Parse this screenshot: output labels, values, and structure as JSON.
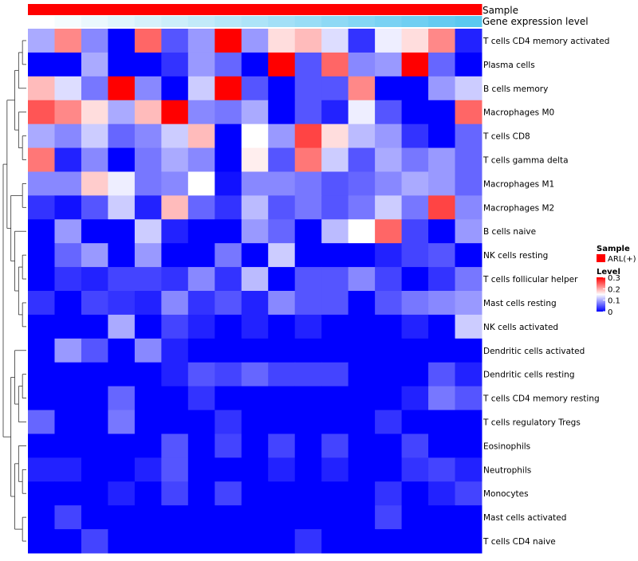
{
  "chart_data": {
    "type": "heatmap",
    "title": "",
    "annotation_tracks": [
      {
        "name": "Sample",
        "color_start": "#ff0000",
        "color_end": "#ff0000"
      },
      {
        "name": "Gene expression level",
        "color_start": "#ffffff",
        "color_end": "#5bc8f0"
      }
    ],
    "rows": [
      "T cells CD4 memory activated",
      "Plasma cells",
      "B cells memory",
      "Macrophages M0",
      "T cells CD8",
      "T cells gamma delta",
      "Macrophages M1",
      "Macrophages M2",
      "B cells naive",
      "NK cells resting",
      "T cells follicular helper",
      "Mast cells resting",
      "NK cells activated",
      "Dendritic cells activated",
      "Dendritic cells resting",
      "T cells CD4 memory resting",
      "T cells regulatory  Tregs",
      "Eosinophils",
      "Neutrophils",
      "Monocytes",
      "Mast cells activated",
      "T cells CD4 naive"
    ],
    "n_columns": 17,
    "values": [
      [
        0.1,
        0.22,
        0.08,
        0.0,
        0.24,
        0.05,
        0.09,
        0.3,
        0.09,
        0.17,
        0.19,
        0.13,
        0.03,
        0.14,
        0.17,
        0.22,
        0.02
      ],
      [
        0.0,
        0.0,
        0.1,
        0.0,
        0.0,
        0.03,
        0.09,
        0.06,
        0.0,
        0.3,
        0.05,
        0.24,
        0.08,
        0.09,
        0.3,
        0.06,
        0.0
      ],
      [
        0.19,
        0.13,
        0.07,
        0.3,
        0.08,
        0.0,
        0.12,
        0.3,
        0.05,
        0.0,
        0.05,
        0.05,
        0.22,
        0.0,
        0.0,
        0.09,
        0.12
      ],
      [
        0.25,
        0.22,
        0.17,
        0.1,
        0.19,
        0.3,
        0.08,
        0.07,
        0.1,
        0.0,
        0.05,
        0.02,
        0.14,
        0.05,
        0.0,
        0.0,
        0.24
      ],
      [
        0.1,
        0.08,
        0.12,
        0.06,
        0.08,
        0.12,
        0.19,
        0.0,
        0.15,
        0.09,
        0.26,
        0.17,
        0.11,
        0.09,
        0.03,
        0.0,
        0.06
      ],
      [
        0.23,
        0.02,
        0.08,
        0.0,
        0.07,
        0.1,
        0.08,
        0.0,
        0.16,
        0.05,
        0.23,
        0.12,
        0.05,
        0.1,
        0.07,
        0.09,
        0.06
      ],
      [
        0.08,
        0.08,
        0.18,
        0.14,
        0.07,
        0.08,
        0.15,
        0.01,
        0.08,
        0.08,
        0.07,
        0.05,
        0.06,
        0.08,
        0.1,
        0.09,
        0.06
      ],
      [
        0.03,
        0.01,
        0.05,
        0.12,
        0.02,
        0.19,
        0.06,
        0.03,
        0.11,
        0.05,
        0.07,
        0.05,
        0.07,
        0.12,
        0.07,
        0.26,
        0.08
      ],
      [
        0.0,
        0.09,
        0.0,
        0.0,
        0.12,
        0.02,
        0.0,
        0.0,
        0.09,
        0.06,
        0.0,
        0.11,
        0.15,
        0.24,
        0.04,
        0.0,
        0.09
      ],
      [
        0.0,
        0.06,
        0.09,
        0.0,
        0.09,
        0.0,
        0.0,
        0.07,
        0.0,
        0.12,
        0.0,
        0.0,
        0.0,
        0.02,
        0.04,
        0.05,
        0.0
      ],
      [
        0.0,
        0.03,
        0.02,
        0.04,
        0.04,
        0.03,
        0.08,
        0.03,
        0.11,
        0.0,
        0.05,
        0.05,
        0.08,
        0.04,
        0.0,
        0.03,
        0.07
      ],
      [
        0.03,
        0.0,
        0.04,
        0.03,
        0.02,
        0.08,
        0.03,
        0.05,
        0.02,
        0.08,
        0.05,
        0.05,
        0.0,
        0.05,
        0.07,
        0.08,
        0.09
      ],
      [
        0.0,
        0.0,
        0.0,
        0.1,
        0.0,
        0.04,
        0.02,
        0.0,
        0.02,
        0.0,
        0.02,
        0.0,
        0.0,
        0.0,
        0.02,
        0.0,
        0.12
      ],
      [
        0.0,
        0.09,
        0.05,
        0.0,
        0.08,
        0.02,
        0.0,
        0.0,
        0.0,
        0.0,
        0.0,
        0.0,
        0.0,
        0.0,
        0.0,
        0.0,
        0.0
      ],
      [
        0.0,
        0.0,
        0.0,
        0.0,
        0.0,
        0.02,
        0.05,
        0.04,
        0.06,
        0.04,
        0.04,
        0.04,
        0.0,
        0.0,
        0.0,
        0.05,
        0.02
      ],
      [
        0.0,
        0.0,
        0.0,
        0.06,
        0.0,
        0.0,
        0.03,
        0.0,
        0.0,
        0.0,
        0.0,
        0.0,
        0.0,
        0.0,
        0.02,
        0.07,
        0.05
      ],
      [
        0.06,
        0.0,
        0.0,
        0.07,
        0.0,
        0.0,
        0.0,
        0.03,
        0.0,
        0.0,
        0.0,
        0.0,
        0.0,
        0.03,
        0.0,
        0.0,
        0.0
      ],
      [
        0.0,
        0.0,
        0.0,
        0.0,
        0.0,
        0.05,
        0.0,
        0.04,
        0.0,
        0.04,
        0.0,
        0.04,
        0.0,
        0.0,
        0.04,
        0.0,
        0.0
      ],
      [
        0.02,
        0.02,
        0.0,
        0.0,
        0.02,
        0.05,
        0.0,
        0.0,
        0.0,
        0.02,
        0.0,
        0.02,
        0.0,
        0.0,
        0.03,
        0.04,
        0.02
      ],
      [
        0.0,
        0.0,
        0.0,
        0.02,
        0.0,
        0.04,
        0.0,
        0.04,
        0.0,
        0.0,
        0.0,
        0.0,
        0.0,
        0.03,
        0.0,
        0.02,
        0.04
      ],
      [
        0.0,
        0.04,
        0.0,
        0.0,
        0.0,
        0.0,
        0.0,
        0.0,
        0.0,
        0.0,
        0.0,
        0.0,
        0.0,
        0.04,
        0.0,
        0.0,
        0.0
      ],
      [
        0.0,
        0.0,
        0.04,
        0.0,
        0.0,
        0.0,
        0.0,
        0.0,
        0.0,
        0.0,
        0.03,
        0.0,
        0.0,
        0.0,
        0.0,
        0.0,
        0.0
      ]
    ],
    "color_scale": {
      "min": 0,
      "max": 0.3,
      "colors": [
        "#0000ff",
        "#ffffff",
        "#ff0000"
      ]
    },
    "legend": {
      "sample_title": "Sample",
      "sample_entry": "ARL(+)",
      "sample_color": "#ff0000",
      "level_title": "Level",
      "level_ticks": [
        "0.3",
        "0.2",
        "0.1",
        "0"
      ],
      "level_tick_values": [
        0.3,
        0.2,
        0.1,
        0
      ]
    },
    "dendrogram": {
      "side": "left",
      "type": "hierarchical clustering of rows"
    }
  }
}
